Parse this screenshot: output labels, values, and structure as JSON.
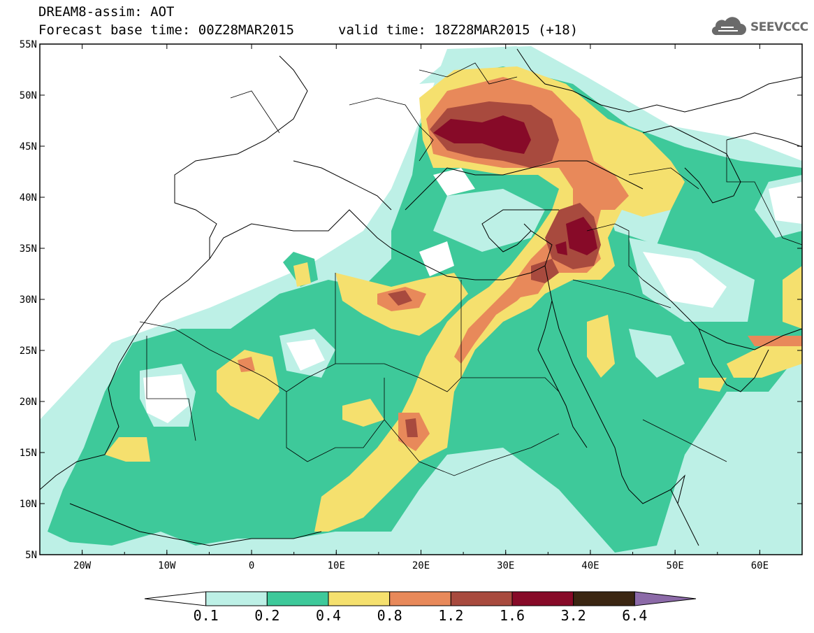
{
  "title": {
    "line1": "DREAM8-assim: AOT",
    "line2": "Forecast base time: 00Z28MAR2015",
    "valid": "valid time: 18Z28MAR2015 (+18)"
  },
  "logo": {
    "text": "SEEVCCC",
    "icon": "cloud-icon"
  },
  "map": {
    "extent": {
      "lon": [
        -25,
        65
      ],
      "lat": [
        5,
        55
      ]
    },
    "lat_ticks": [
      "5N",
      "10N",
      "15N",
      "20N",
      "25N",
      "30N",
      "35N",
      "40N",
      "45N",
      "50N",
      "55N"
    ],
    "lon_ticks": [
      "20W",
      "10W",
      "0",
      "10E",
      "20E",
      "30E",
      "40E",
      "50E",
      "60E"
    ]
  },
  "colorbar": {
    "labels": [
      "0.1",
      "0.2",
      "0.4",
      "0.8",
      "1.2",
      "1.6",
      "3.2",
      "6.4"
    ],
    "colors": [
      "#ffffff",
      "#bdf0e6",
      "#3ec99a",
      "#f5e06e",
      "#e8895a",
      "#a84a3e",
      "#870a28",
      "#3b2612",
      "#8c6aa8"
    ]
  },
  "legend_colors": {
    "c1": "#bdf0e6",
    "c2": "#3ec99a",
    "c3": "#f5e06e",
    "c4": "#e8895a",
    "c5": "#a84a3e",
    "c6": "#870a28"
  }
}
